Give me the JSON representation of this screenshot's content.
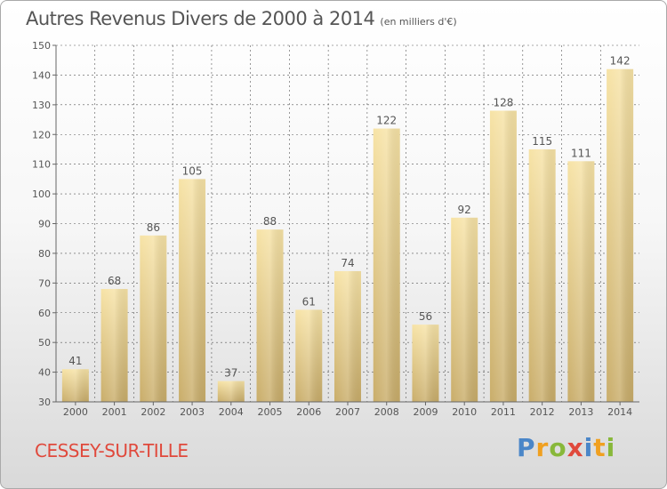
{
  "header": {
    "title": "Autres Revenus Divers de 2000 à 2014",
    "unit": "(en milliers d'€)"
  },
  "footer": {
    "place": "CESSEY-SUR-TILLE",
    "brand": "Proxiti"
  },
  "colors": {
    "bar_light": "#f7e3a6",
    "bar_dark": "#c9ad6a",
    "grid": "#555555",
    "text": "#555555",
    "place": "#e0493c"
  },
  "chart_data": {
    "type": "bar",
    "title": "Autres Revenus Divers de 2000 à 2014",
    "subtitle": "(en milliers d'€)",
    "xlabel": "",
    "ylabel": "",
    "categories": [
      "2000",
      "2001",
      "2002",
      "2003",
      "2004",
      "2005",
      "2006",
      "2007",
      "2008",
      "2009",
      "2010",
      "2011",
      "2012",
      "2013",
      "2014"
    ],
    "values": [
      41,
      68,
      86,
      105,
      37,
      88,
      61,
      74,
      122,
      56,
      92,
      128,
      115,
      111,
      142
    ],
    "ylim": [
      30,
      150
    ],
    "yticks": [
      30,
      40,
      50,
      60,
      70,
      80,
      90,
      100,
      110,
      120,
      130,
      140,
      150
    ],
    "grid": true,
    "grid_style": "dashed",
    "legend": "none",
    "data_labels": true
  }
}
